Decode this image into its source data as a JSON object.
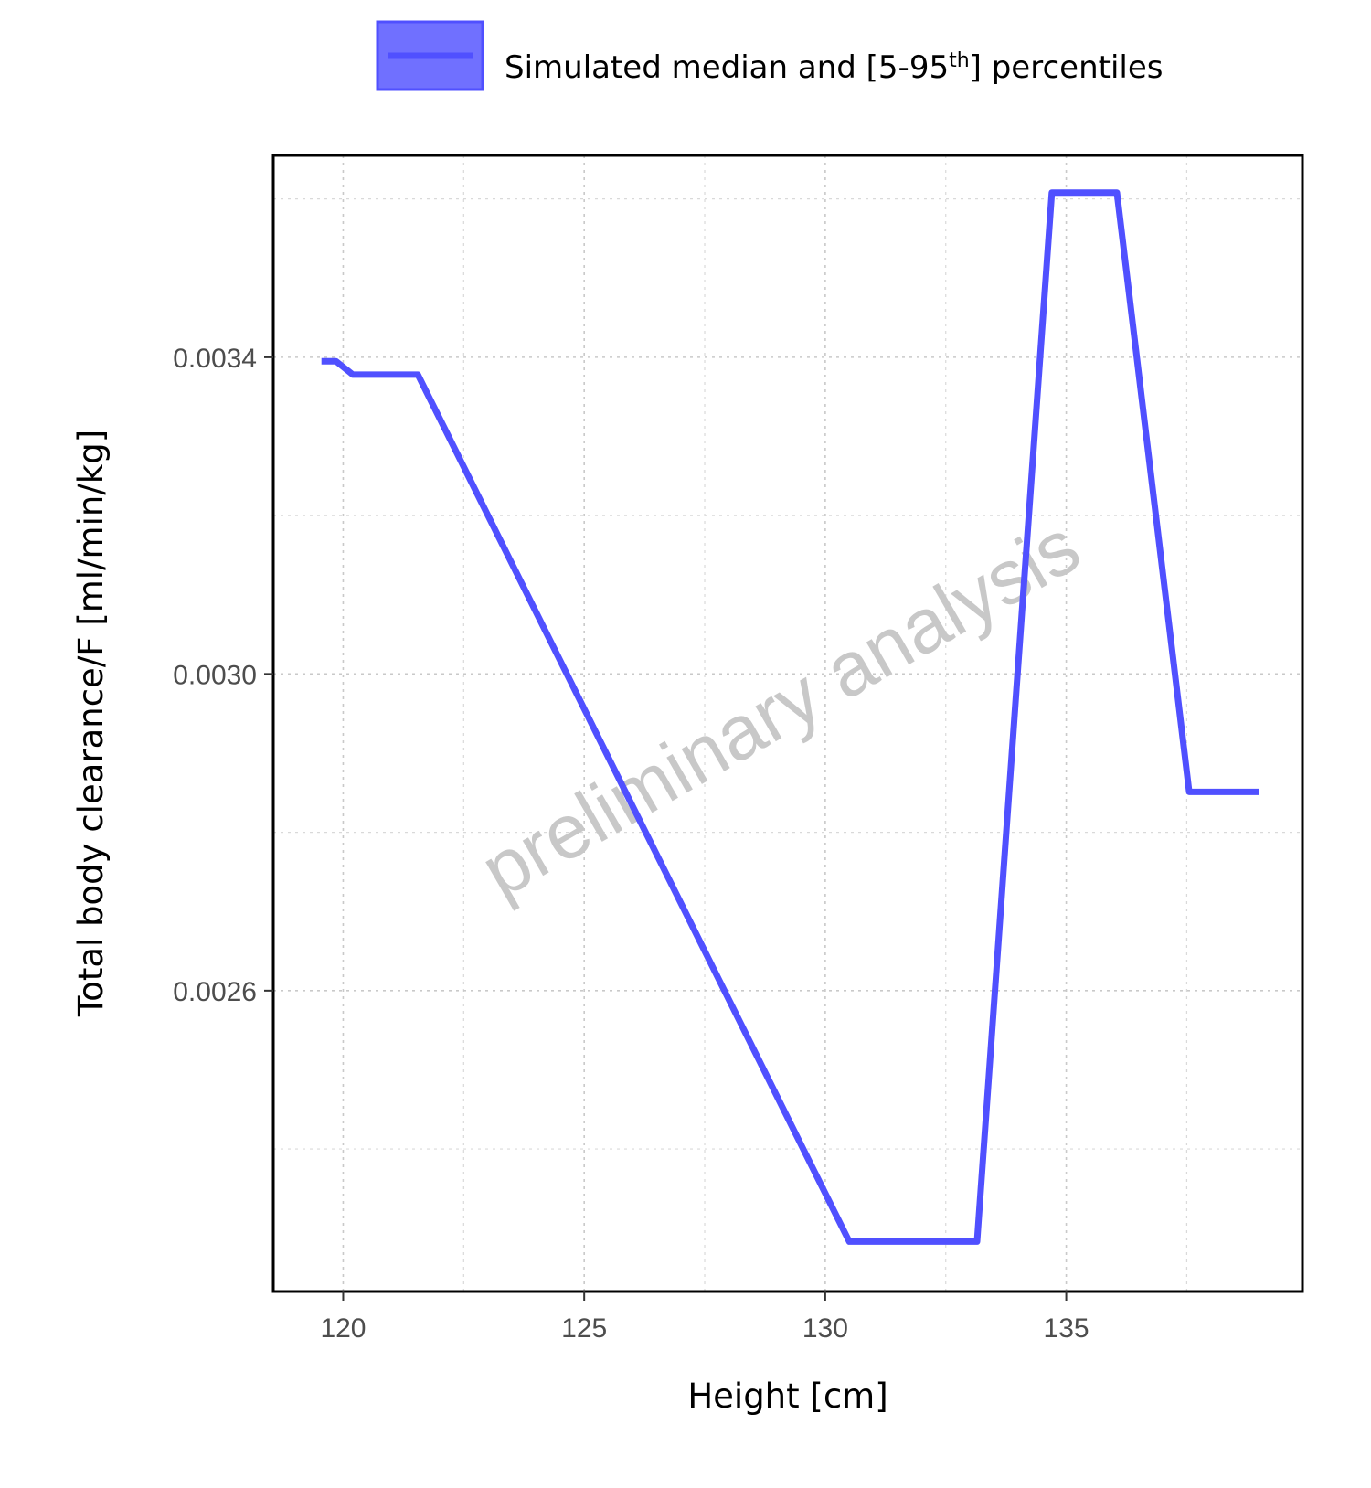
{
  "chart_data": {
    "type": "line",
    "title": "",
    "xlabel": "Height [cm]",
    "ylabel": "Total body clearance/F [ml/min/kg]",
    "xlim": [
      118.55,
      139.9
    ],
    "ylim": [
      0.00222,
      0.003655
    ],
    "x_ticks": [
      120,
      125,
      130,
      135
    ],
    "x_tick_labels": [
      "120",
      "125",
      "130",
      "135"
    ],
    "x_minor_ticks": [
      122.5,
      127.5,
      132.5,
      137.5
    ],
    "y_ticks": [
      0.0026,
      0.003,
      0.0034
    ],
    "y_tick_labels": [
      "0.0026",
      "0.0030",
      "0.0034"
    ],
    "y_minor_ticks": [
      0.0024,
      0.0028,
      0.0032,
      0.0036
    ],
    "grid": true,
    "legend": {
      "position": "top",
      "entries": [
        {
          "label_main": "Simulated median and [5-95",
          "label_sup": "th",
          "label_end": "] percentiles"
        }
      ]
    },
    "watermark": "preliminary analysis",
    "series": [
      {
        "color": "#5050ff",
        "fill_color": "#7070ff",
        "x": [
          119.55,
          119.85,
          120.2,
          121.55,
          130.5,
          133.15,
          134.7,
          136.05,
          137.55,
          139.0
        ],
        "y": [
          0.003395,
          0.003395,
          0.003378,
          0.003378,
          0.002283,
          0.002283,
          0.003608,
          0.003608,
          0.002851,
          0.002851
        ]
      }
    ]
  }
}
